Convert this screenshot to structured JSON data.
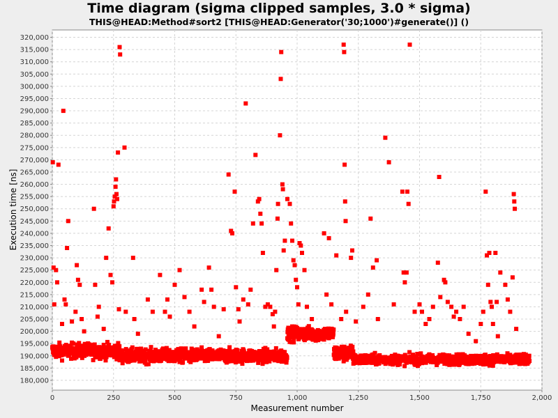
{
  "chart_data": {
    "type": "scatter",
    "title": "Time diagram (sigma clipped samples, 3.0 * sigma)",
    "subtitle": "THIS@HEAD:Method#sort2 [THIS@HEAD:Generator('30;1000')#generate()] ()",
    "xlabel": "Measurement number",
    "ylabel": "Execution time [ns]",
    "xlim": [
      0,
      2000
    ],
    "ylim": [
      176000,
      323000
    ],
    "xticks": [
      0,
      250,
      500,
      750,
      1000,
      1250,
      1500,
      1750,
      2000
    ],
    "xtick_labels": [
      "0",
      "250",
      "500",
      "750",
      "1,000",
      "1,250",
      "1,500",
      "1,750",
      "2,000"
    ],
    "yticks": [
      180000,
      185000,
      190000,
      195000,
      200000,
      205000,
      210000,
      215000,
      220000,
      225000,
      230000,
      235000,
      240000,
      245000,
      250000,
      255000,
      260000,
      265000,
      270000,
      275000,
      280000,
      285000,
      290000,
      295000,
      300000,
      305000,
      310000,
      315000,
      320000
    ],
    "ytick_labels": [
      "180,000",
      "185,000",
      "190,000",
      "195,000",
      "200,000",
      "205,000",
      "210,000",
      "215,000",
      "220,000",
      "225,000",
      "230,000",
      "235,000",
      "240,000",
      "245,000",
      "250,000",
      "255,000",
      "260,000",
      "265,000",
      "270,000",
      "275,000",
      "280,000",
      "285,000",
      "290,000",
      "295,000",
      "300,000",
      "305,000",
      "310,000",
      "315,000",
      "320,000"
    ],
    "grid": true,
    "marker_color": "#ff0000",
    "outliers": [
      [
        2,
        269000
      ],
      [
        5,
        226000
      ],
      [
        8,
        211000
      ],
      [
        15,
        225000
      ],
      [
        20,
        220000
      ],
      [
        25,
        268000
      ],
      [
        40,
        203000
      ],
      [
        45,
        290000
      ],
      [
        50,
        213000
      ],
      [
        55,
        211000
      ],
      [
        60,
        234000
      ],
      [
        65,
        245000
      ],
      [
        80,
        204000
      ],
      [
        95,
        208000
      ],
      [
        100,
        227000
      ],
      [
        105,
        221000
      ],
      [
        112,
        219000
      ],
      [
        120,
        205000
      ],
      [
        130,
        200000
      ],
      [
        170,
        250000
      ],
      [
        175,
        219000
      ],
      [
        185,
        206000
      ],
      [
        190,
        210000
      ],
      [
        210,
        201000
      ],
      [
        220,
        230000
      ],
      [
        230,
        242000
      ],
      [
        238,
        223000
      ],
      [
        245,
        220000
      ],
      [
        250,
        251000
      ],
      [
        252,
        253000
      ],
      [
        255,
        255000
      ],
      [
        258,
        259000
      ],
      [
        260,
        262000
      ],
      [
        262,
        256000
      ],
      [
        265,
        254000
      ],
      [
        268,
        273000
      ],
      [
        272,
        209000
      ],
      [
        275,
        316000
      ],
      [
        277,
        313000
      ],
      [
        295,
        275000
      ],
      [
        300,
        208000
      ],
      [
        330,
        230000
      ],
      [
        335,
        205000
      ],
      [
        350,
        199000
      ],
      [
        390,
        213000
      ],
      [
        410,
        208000
      ],
      [
        440,
        223000
      ],
      [
        460,
        208000
      ],
      [
        470,
        213000
      ],
      [
        480,
        206000
      ],
      [
        500,
        219000
      ],
      [
        520,
        225000
      ],
      [
        540,
        214000
      ],
      [
        560,
        208000
      ],
      [
        580,
        202000
      ],
      [
        610,
        217000
      ],
      [
        620,
        212000
      ],
      [
        640,
        226000
      ],
      [
        650,
        217000
      ],
      [
        660,
        210000
      ],
      [
        680,
        198000
      ],
      [
        700,
        209000
      ],
      [
        720,
        264000
      ],
      [
        730,
        241000
      ],
      [
        735,
        240000
      ],
      [
        745,
        257000
      ],
      [
        750,
        218000
      ],
      [
        760,
        209000
      ],
      [
        765,
        204000
      ],
      [
        780,
        213000
      ],
      [
        790,
        293000
      ],
      [
        800,
        211000
      ],
      [
        810,
        217000
      ],
      [
        820,
        244000
      ],
      [
        830,
        272000
      ],
      [
        840,
        253000
      ],
      [
        845,
        254000
      ],
      [
        850,
        248000
      ],
      [
        855,
        244000
      ],
      [
        860,
        232000
      ],
      [
        870,
        210000
      ],
      [
        880,
        211000
      ],
      [
        890,
        210000
      ],
      [
        900,
        207000
      ],
      [
        905,
        202000
      ],
      [
        910,
        208000
      ],
      [
        915,
        225000
      ],
      [
        920,
        246000
      ],
      [
        922,
        252000
      ],
      [
        930,
        280000
      ],
      [
        933,
        303000
      ],
      [
        935,
        314000
      ],
      [
        940,
        260000
      ],
      [
        942,
        258000
      ],
      [
        945,
        233000
      ],
      [
        950,
        237000
      ],
      [
        960,
        254000
      ],
      [
        970,
        252000
      ],
      [
        975,
        244000
      ],
      [
        980,
        237000
      ],
      [
        985,
        229000
      ],
      [
        990,
        227000
      ],
      [
        995,
        221000
      ],
      [
        1000,
        218000
      ],
      [
        1005,
        211000
      ],
      [
        1010,
        236000
      ],
      [
        1015,
        235000
      ],
      [
        1020,
        232000
      ],
      [
        1030,
        225000
      ],
      [
        1040,
        210000
      ],
      [
        1060,
        205000
      ],
      [
        1080,
        200000
      ],
      [
        1110,
        240000
      ],
      [
        1120,
        215000
      ],
      [
        1130,
        238000
      ],
      [
        1140,
        211000
      ],
      [
        1160,
        231000
      ],
      [
        1180,
        205000
      ],
      [
        1190,
        317000
      ],
      [
        1192,
        314000
      ],
      [
        1194,
        268000
      ],
      [
        1196,
        253000
      ],
      [
        1198,
        245000
      ],
      [
        1200,
        208000
      ],
      [
        1220,
        230000
      ],
      [
        1225,
        233000
      ],
      [
        1240,
        204000
      ],
      [
        1270,
        210000
      ],
      [
        1290,
        215000
      ],
      [
        1300,
        246000
      ],
      [
        1310,
        226000
      ],
      [
        1325,
        229000
      ],
      [
        1330,
        205000
      ],
      [
        1360,
        279000
      ],
      [
        1375,
        269000
      ],
      [
        1395,
        211000
      ],
      [
        1430,
        257000
      ],
      [
        1435,
        224000
      ],
      [
        1440,
        220000
      ],
      [
        1447,
        224000
      ],
      [
        1450,
        257000
      ],
      [
        1455,
        252000
      ],
      [
        1460,
        317000
      ],
      [
        1480,
        208000
      ],
      [
        1500,
        211000
      ],
      [
        1510,
        208000
      ],
      [
        1525,
        203000
      ],
      [
        1540,
        205000
      ],
      [
        1555,
        210000
      ],
      [
        1575,
        228000
      ],
      [
        1580,
        263000
      ],
      [
        1585,
        214000
      ],
      [
        1600,
        221000
      ],
      [
        1605,
        220000
      ],
      [
        1615,
        212000
      ],
      [
        1630,
        210000
      ],
      [
        1640,
        206000
      ],
      [
        1650,
        208000
      ],
      [
        1665,
        205000
      ],
      [
        1680,
        210000
      ],
      [
        1700,
        199000
      ],
      [
        1730,
        196000
      ],
      [
        1750,
        203000
      ],
      [
        1760,
        208000
      ],
      [
        1770,
        257000
      ],
      [
        1775,
        231000
      ],
      [
        1780,
        219000
      ],
      [
        1785,
        232000
      ],
      [
        1790,
        212000
      ],
      [
        1795,
        210000
      ],
      [
        1800,
        203000
      ],
      [
        1810,
        232000
      ],
      [
        1815,
        212000
      ],
      [
        1820,
        198000
      ],
      [
        1830,
        224000
      ],
      [
        1850,
        219000
      ],
      [
        1860,
        213000
      ],
      [
        1870,
        208000
      ],
      [
        1880,
        222000
      ],
      [
        1885,
        256000
      ],
      [
        1887,
        253000
      ],
      [
        1889,
        250000
      ],
      [
        1895,
        201000
      ]
    ]
  }
}
